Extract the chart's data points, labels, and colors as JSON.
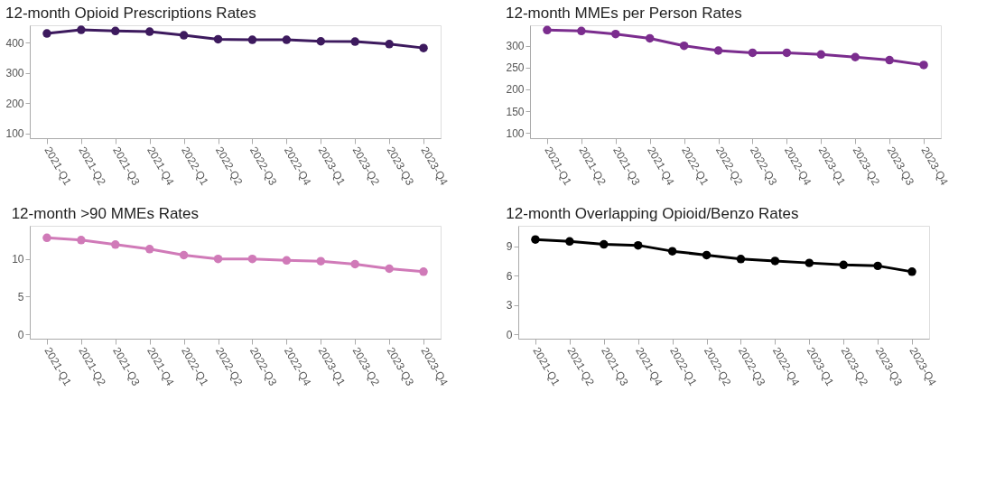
{
  "chart_data": [
    {
      "type": "line",
      "title": "12-month Opioid Prescriptions Rates",
      "categories": [
        "2021-Q1",
        "2021-Q2",
        "2021-Q3",
        "2021-Q4",
        "2022-Q1",
        "2022-Q2",
        "2022-Q3",
        "2022-Q4",
        "2023-Q1",
        "2023-Q2",
        "2023-Q3",
        "2023-Q4"
      ],
      "series": [
        {
          "color": "#3d1a5e",
          "values": [
            431,
            443,
            439,
            437,
            425,
            412,
            410,
            410,
            405,
            404,
            396,
            383
          ]
        }
      ],
      "ylim": [
        85,
        458
      ],
      "yticks": [
        100,
        200,
        300,
        400
      ],
      "grid": false,
      "marker": "circle",
      "line_style": "solid"
    },
    {
      "type": "line",
      "title": "12-month MMEs per Person Rates",
      "categories": [
        "2021-Q1",
        "2021-Q2",
        "2021-Q3",
        "2021-Q4",
        "2022-Q1",
        "2022-Q2",
        "2022-Q3",
        "2022-Q4",
        "2023-Q1",
        "2023-Q2",
        "2023-Q3",
        "2023-Q4"
      ],
      "series": [
        {
          "color": "#7b2d8e",
          "values": [
            336,
            334,
            327,
            317,
            300,
            289,
            284,
            284,
            280,
            274,
            267,
            256
          ]
        }
      ],
      "ylim": [
        88,
        347
      ],
      "yticks": [
        100,
        150,
        200,
        250,
        300
      ],
      "grid": false,
      "marker": "circle",
      "line_style": "solid"
    },
    {
      "type": "line",
      "title": "12-month >90 MMEs Rates",
      "categories": [
        "2021-Q1",
        "2021-Q2",
        "2021-Q3",
        "2021-Q4",
        "2022-Q1",
        "2022-Q2",
        "2022-Q3",
        "2022-Q4",
        "2023-Q1",
        "2023-Q2",
        "2023-Q3",
        "2023-Q4"
      ],
      "series": [
        {
          "color": "#d07ab8",
          "values": [
            12.8,
            12.5,
            11.9,
            11.3,
            10.5,
            10.0,
            10.0,
            9.8,
            9.7,
            9.3,
            8.7,
            8.3
          ]
        }
      ],
      "ylim": [
        -0.6,
        14.4
      ],
      "yticks": [
        0,
        5,
        10
      ],
      "grid": false,
      "marker": "circle",
      "line_style": "solid"
    },
    {
      "type": "line",
      "title": "12-month Overlapping Opioid/Benzo Rates",
      "categories": [
        "2021-Q1",
        "2021-Q2",
        "2021-Q3",
        "2021-Q4",
        "2022-Q1",
        "2022-Q2",
        "2022-Q3",
        "2022-Q4",
        "2023-Q1",
        "2023-Q2",
        "2023-Q3",
        "2023-Q4"
      ],
      "series": [
        {
          "color": "#000000",
          "values": [
            9.7,
            9.5,
            9.2,
            9.1,
            8.5,
            8.1,
            7.7,
            7.5,
            7.3,
            7.1,
            7.0,
            6.4
          ]
        }
      ],
      "ylim": [
        -0.45,
        11.1
      ],
      "yticks": [
        0,
        3,
        6,
        9
      ],
      "grid": false,
      "marker": "circle",
      "line_style": "solid"
    }
  ]
}
